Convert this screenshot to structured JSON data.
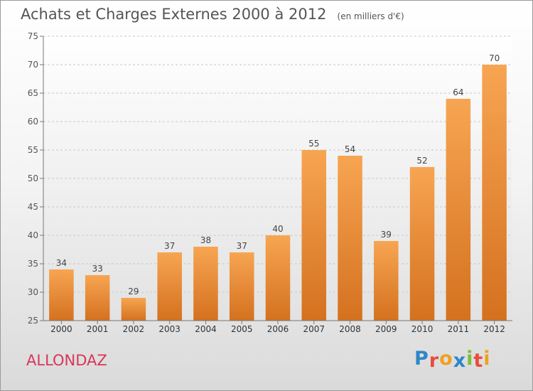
{
  "chart_data": {
    "type": "bar",
    "title": "Achats et Charges Externes 2000 à 2012",
    "unit": "(en milliers d'€)",
    "categories": [
      "2000",
      "2001",
      "2002",
      "2003",
      "2004",
      "2005",
      "2006",
      "2007",
      "2008",
      "2009",
      "2010",
      "2011",
      "2012"
    ],
    "values": [
      34,
      33,
      29,
      37,
      38,
      37,
      40,
      55,
      54,
      39,
      52,
      64,
      70
    ],
    "ylim": [
      25,
      75
    ],
    "yticks": [
      25,
      30,
      35,
      40,
      45,
      50,
      55,
      60,
      65,
      70,
      75
    ],
    "grid": true,
    "bar_color_top": "#f7a552",
    "bar_color_bottom": "#d4711f"
  },
  "footer": {
    "commune": "ALLONDAZ",
    "logo_letters": [
      {
        "char": "P",
        "color": "#2e86c8"
      },
      {
        "char": "r",
        "color": "#e84d3d"
      },
      {
        "char": "o",
        "color": "#f0a020"
      },
      {
        "char": "x",
        "color": "#2e86c8"
      },
      {
        "char": "i",
        "color": "#7cbf3a"
      },
      {
        "char": "t",
        "color": "#e84d3d"
      },
      {
        "char": "i",
        "color": "#f0a020"
      }
    ]
  }
}
